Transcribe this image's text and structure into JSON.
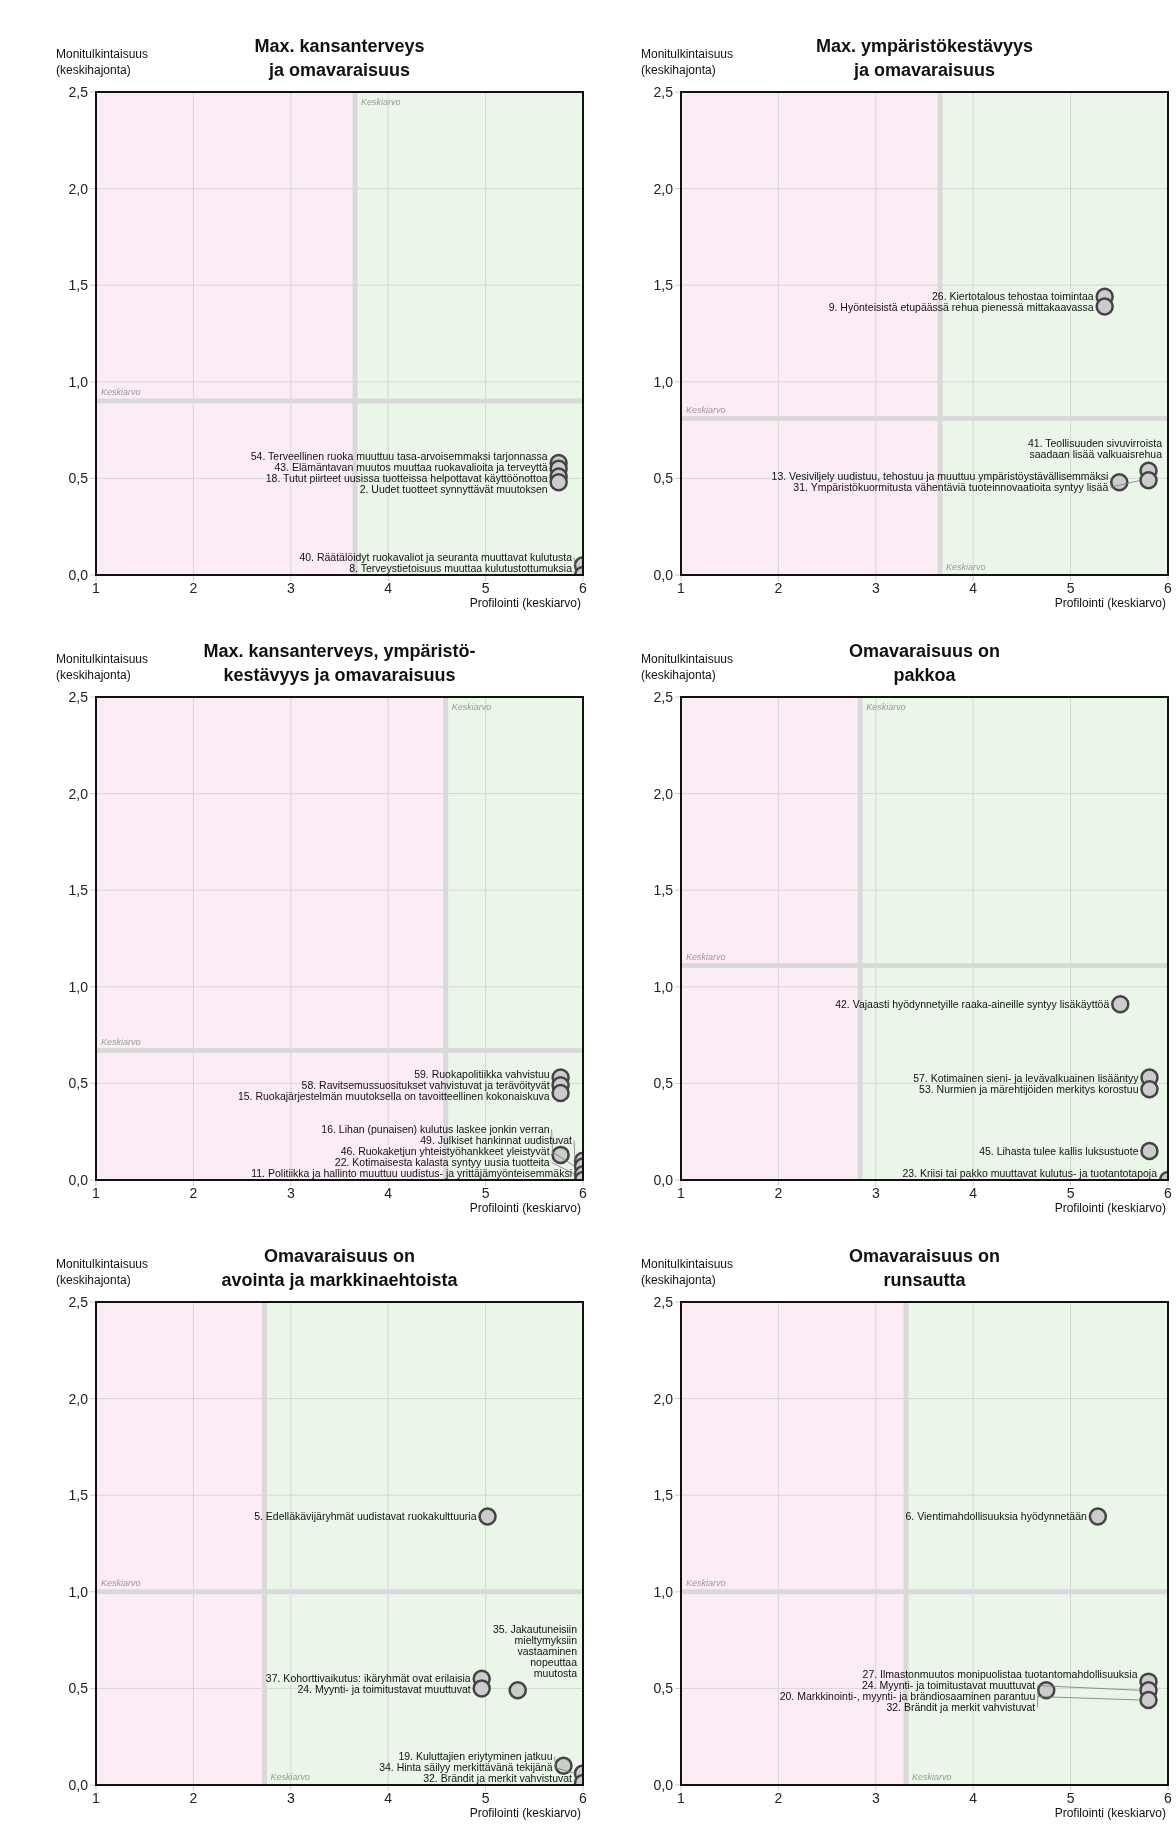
{
  "chart_data": [
    {
      "type": "scatter",
      "title": "Max. kansanterveys\nja omavaraisuus",
      "xlabel": "Profilointi (keskiarvo)",
      "ylabel": "Monitulkintaisuus\n(keskihajonta)",
      "xlim": [
        1,
        6
      ],
      "ylim": [
        0,
        2.5
      ],
      "xticks": [
        1,
        2,
        3,
        4,
        5,
        6
      ],
      "yticks": [
        {
          "value": 0,
          "label": "0,0"
        },
        {
          "value": 0.5,
          "label": "0,5"
        },
        {
          "value": 1,
          "label": "1,0"
        },
        {
          "value": 1.5,
          "label": "1,5"
        },
        {
          "value": 2,
          "label": "2,0"
        },
        {
          "value": 2.5,
          "label": "2,5"
        }
      ],
      "grid": true,
      "marker": "circle",
      "ref_lines": [
        {
          "axis": "x",
          "value": 3.66,
          "label": "Keskiarvo",
          "color": "#d9d9d9"
        },
        {
          "axis": "y",
          "value": 0.9,
          "label": "Keskiarvo",
          "color": "#d9d9d9"
        }
      ],
      "bands": [
        {
          "axis": "x",
          "from": 1,
          "to": 3.66,
          "color": "#fbecf5"
        },
        {
          "axis": "x",
          "from": 3.66,
          "to": 6,
          "color": "#eaf6e8"
        }
      ],
      "series": [
        {
          "color": "#cccccc",
          "x": [
            5.75,
            5.75,
            5.75,
            5.75,
            6,
            6
          ],
          "values": [
            0.58,
            0.55,
            0.51,
            0.48,
            0.05,
            0
          ]
        }
      ],
      "annotations": [
        {
          "text": "54. Terveellinen ruoka muuttuu tasa-arvoisemmaksi tarjonnassa",
          "x": 5.75,
          "y": 0.58
        },
        {
          "text": "43. Elämäntavan muutos muuttaa ruokavalioita ja terveyttä",
          "x": 5.75,
          "y": 0.55
        },
        {
          "text": "18. Tutut piirteet uusissa tuotteissa helpottavat käyttöönottoa",
          "x": 5.75,
          "y": 0.51
        },
        {
          "text": "2. Uudet tuotteet synnyttävät muutoksen",
          "x": 5.75,
          "y": 0.48
        },
        {
          "text": "40. Räätälöidyt ruokavaliot ja seuranta muuttavat kulutusta",
          "x": 6,
          "y": 0.05
        },
        {
          "text": "8. Terveystietoisuus muuttaa kulutustottumuksia",
          "x": 6,
          "y": 0
        }
      ]
    },
    {
      "type": "scatter",
      "title": "Max. ympäristökestävyys\nja omavaraisuus",
      "xlabel": "Profilointi (keskiarvo)",
      "ylabel": "Monitulkintaisuus\n(keskihajonta)",
      "xlim": [
        1,
        6
      ],
      "ylim": [
        0,
        2.5
      ],
      "xticks": [
        1,
        2,
        3,
        4,
        5,
        6
      ],
      "yticks": [
        {
          "value": 0,
          "label": "0,0"
        },
        {
          "value": 0.5,
          "label": "0,5"
        },
        {
          "value": 1,
          "label": "1,0"
        },
        {
          "value": 1.5,
          "label": "1,5"
        },
        {
          "value": 2,
          "label": "2,0"
        },
        {
          "value": 2.5,
          "label": "2,5"
        }
      ],
      "grid": true,
      "marker": "circle",
      "ref_lines": [
        {
          "axis": "x",
          "value": 3.66,
          "label": "Keskiarvo",
          "color": "#d9d9d9"
        },
        {
          "axis": "y",
          "value": 0.81,
          "label": "Keskiarvo",
          "color": "#d9d9d9"
        }
      ],
      "bands": [
        {
          "axis": "x",
          "from": 1,
          "to": 3.66,
          "color": "#fbecf5"
        },
        {
          "axis": "x",
          "from": 3.66,
          "to": 6,
          "color": "#eaf6e8"
        }
      ],
      "series": [
        {
          "color": "#cccccc",
          "x": [
            5.35,
            5.35,
            5.8,
            5.5,
            5.8
          ],
          "values": [
            1.44,
            1.39,
            0.54,
            0.48,
            0.49
          ]
        }
      ],
      "annotations": [
        {
          "text": "26. Kiertotalous tehostaa toimintaa",
          "x": 5.35,
          "y": 1.44
        },
        {
          "text": "9. Hyönteisistä etupäässä rehua pienessä mittakaavassa",
          "x": 5.35,
          "y": 1.39
        },
        {
          "text": "41. Teollisuuden sivuvirroista\nsaadaan lisää valkuaisrehua",
          "x": 5.8,
          "y": 0.54
        },
        {
          "text": "13. Vesiviljely uudistuu, tehostuu ja muuttuu ympäristöystävällisemmäksi",
          "x": 5.5,
          "y": 0.48
        },
        {
          "text": "31. Ympäristökuormitusta vähentäviä tuoteinnovaatioita syntyy lisää",
          "x": 5.8,
          "y": 0.49
        }
      ]
    },
    {
      "type": "scatter",
      "title": "Max. kansanterveys, ympäristö-\nkestävyys ja omavaraisuus",
      "xlabel": "Profilointi (keskiarvo)",
      "ylabel": "Monitulkintaisuus\n(keskihajonta)",
      "xlim": [
        1,
        6
      ],
      "ylim": [
        0,
        2.5
      ],
      "xticks": [
        1,
        2,
        3,
        4,
        5,
        6
      ],
      "yticks": [
        {
          "value": 0,
          "label": "0,0"
        },
        {
          "value": 0.5,
          "label": "0,5"
        },
        {
          "value": 1,
          "label": "1,0"
        },
        {
          "value": 1.5,
          "label": "1,5"
        },
        {
          "value": 2,
          "label": "2,0"
        },
        {
          "value": 2.5,
          "label": "2,5"
        }
      ],
      "grid": true,
      "marker": "circle",
      "ref_lines": [
        {
          "axis": "x",
          "value": 4.59,
          "label": "Keskiarvo",
          "color": "#d9d9d9"
        },
        {
          "axis": "y",
          "value": 0.67,
          "label": "Keskiarvo",
          "color": "#d9d9d9"
        }
      ],
      "bands": [
        {
          "axis": "x",
          "from": 1,
          "to": 4.59,
          "color": "#fbecf5"
        },
        {
          "axis": "x",
          "from": 4.59,
          "to": 6,
          "color": "#eaf6e8"
        }
      ],
      "series": [
        {
          "color": "#cccccc",
          "x": [
            5.77,
            5.77,
            5.77,
            5.77,
            6,
            6,
            6,
            6
          ],
          "values": [
            0.53,
            0.49,
            0.45,
            0.13,
            0.1,
            0.07,
            0.03,
            0
          ]
        }
      ],
      "annotations": [
        {
          "text": "59. Ruokapolitiikka vahvistuu",
          "x": 5.77,
          "y": 0.53
        },
        {
          "text": "58. Ravitsemussuositukset vahvistuvat ja terävöityvät",
          "x": 5.77,
          "y": 0.49
        },
        {
          "text": "15. Ruokajärjestelmän muutoksella on tavoitteellinen kokonaiskuva",
          "x": 5.77,
          "y": 0.45
        },
        {
          "text": "16. Lihan (punaisen) kulutus laskee jonkin verran",
          "x": 5.77,
          "y": 0.13
        },
        {
          "text": "49. Julkiset hankinnat uudistuvat",
          "x": 6,
          "y": 0.1
        },
        {
          "text": "46. Ruokaketjun yhteistyöhankkeet yleistyvät",
          "x": 6,
          "y": 0.07
        },
        {
          "text": "22. Kotimaisesta kalasta syntyy uusia tuotteita",
          "x": 6,
          "y": 0.03
        },
        {
          "text": "11. Politiikka ja hallinto muuttuu uudistus- ja yrittäjämyönteisemmäksi",
          "x": 6,
          "y": 0
        }
      ]
    },
    {
      "type": "scatter",
      "title": "Omavaraisuus on\npakkoa",
      "xlabel": "Profilointi (keskiarvo)",
      "ylabel": "Monitulkintaisuus\n(keskihajonta)",
      "xlim": [
        1,
        6
      ],
      "ylim": [
        0,
        2.5
      ],
      "xticks": [
        1,
        2,
        3,
        4,
        5,
        6
      ],
      "yticks": [
        {
          "value": 0,
          "label": "0,0"
        },
        {
          "value": 0.5,
          "label": "0,5"
        },
        {
          "value": 1,
          "label": "1,0"
        },
        {
          "value": 1.5,
          "label": "1,5"
        },
        {
          "value": 2,
          "label": "2,0"
        },
        {
          "value": 2.5,
          "label": "2,5"
        }
      ],
      "grid": true,
      "marker": "circle",
      "ref_lines": [
        {
          "axis": "x",
          "value": 2.84,
          "label": "Keskiarvo",
          "color": "#d9d9d9"
        },
        {
          "axis": "y",
          "value": 1.11,
          "label": "Keskiarvo",
          "color": "#d9d9d9"
        }
      ],
      "bands": [
        {
          "axis": "x",
          "from": 1,
          "to": 2.84,
          "color": "#fbecf5"
        },
        {
          "axis": "x",
          "from": 2.84,
          "to": 6,
          "color": "#eaf6e8"
        }
      ],
      "series": [
        {
          "color": "#cccccc",
          "x": [
            5.51,
            5.81,
            5.81,
            5.81,
            6
          ],
          "values": [
            0.91,
            0.53,
            0.47,
            0.15,
            0
          ]
        }
      ],
      "annotations": [
        {
          "text": "42. Vajaasti hyödynnetyille raaka-aineille syntyy lisäkäyttöä",
          "x": 5.51,
          "y": 0.91
        },
        {
          "text": "57. Kotimainen sieni- ja levävalkuainen lisääntyy",
          "x": 5.81,
          "y": 0.53
        },
        {
          "text": "53. Nurmien ja märehtijöiden merkitys korostuu",
          "x": 5.81,
          "y": 0.47
        },
        {
          "text": "45. Lihasta tulee kallis luksustuote",
          "x": 5.81,
          "y": 0.15
        },
        {
          "text": "23. Kriisi tai pakko muuttavat kulutus- ja tuotantotapoja",
          "x": 6,
          "y": 0
        }
      ]
    },
    {
      "type": "scatter",
      "title": "Omavaraisuus on\navointa ja markkinaehtoista",
      "xlabel": "Profilointi (keskiarvo)",
      "ylabel": "Monitulkintaisuus\n(keskihajonta)",
      "xlim": [
        1,
        6
      ],
      "ylim": [
        0,
        2.5
      ],
      "xticks": [
        1,
        2,
        3,
        4,
        5,
        6
      ],
      "yticks": [
        {
          "value": 0,
          "label": "0,0"
        },
        {
          "value": 0.5,
          "label": "0,5"
        },
        {
          "value": 1,
          "label": "1,0"
        },
        {
          "value": 1.5,
          "label": "1,5"
        },
        {
          "value": 2,
          "label": "2,0"
        },
        {
          "value": 2.5,
          "label": "2,5"
        }
      ],
      "grid": true,
      "marker": "circle",
      "ref_lines": [
        {
          "axis": "x",
          "value": 2.73,
          "label": "Keskiarvo",
          "color": "#d9d9d9"
        },
        {
          "axis": "y",
          "value": 1,
          "label": "Keskiarvo",
          "color": "#d9d9d9"
        }
      ],
      "bands": [
        {
          "axis": "x",
          "from": 1,
          "to": 2.73,
          "color": "#fbecf5"
        },
        {
          "axis": "x",
          "from": 2.73,
          "to": 6,
          "color": "#eaf6e8"
        }
      ],
      "series": [
        {
          "color": "#cccccc",
          "x": [
            5.02,
            5.33,
            4.96,
            4.96,
            5.8,
            6,
            6
          ],
          "values": [
            1.39,
            0.49,
            0.55,
            0.5,
            0.1,
            0.06,
            0.01
          ]
        }
      ],
      "annotations": [
        {
          "text": "5. Edelläkävijäryhmät uudistavat ruokakulttuuria",
          "x": 5.02,
          "y": 1.39
        },
        {
          "text": "35. Jakautuneisiin\nmieltymyksiin\nvastaaminen\nnopeuttaa\nmuutosta",
          "x": 5.33,
          "y": 0.49
        },
        {
          "text": "37. Kohorttivaikutus: ikäryhmät ovat erilaisia",
          "x": 4.96,
          "y": 0.55
        },
        {
          "text": "24. Myynti- ja toimitustavat muuttuvat",
          "x": 4.96,
          "y": 0.5
        },
        {
          "text": "19. Kuluttajien eriytyminen jatkuu",
          "x": 5.8,
          "y": 0.1
        },
        {
          "text": "34. Hinta säilyy merkittävänä tekijänä",
          "x": 6,
          "y": 0.06
        },
        {
          "text": "32. Brändit ja merkit vahvistuvat",
          "x": 6,
          "y": 0.01
        }
      ]
    },
    {
      "type": "scatter",
      "title": "Omavaraisuus on\nrunsautta",
      "xlabel": "Profilointi (keskiarvo)",
      "ylabel": "Monitulkintaisuus\n(keskihajonta)",
      "xlim": [
        1,
        6
      ],
      "ylim": [
        0,
        2.5
      ],
      "xticks": [
        1,
        2,
        3,
        4,
        5,
        6
      ],
      "yticks": [
        {
          "value": 0,
          "label": "0,0"
        },
        {
          "value": 0.5,
          "label": "0,5"
        },
        {
          "value": 1,
          "label": "1,0"
        },
        {
          "value": 1.5,
          "label": "1,5"
        },
        {
          "value": 2,
          "label": "2,0"
        },
        {
          "value": 2.5,
          "label": "2,5"
        }
      ],
      "grid": true,
      "marker": "circle",
      "ref_lines": [
        {
          "axis": "x",
          "value": 3.31,
          "label": "Keskiarvo",
          "color": "#d9d9d9"
        },
        {
          "axis": "y",
          "value": 1,
          "label": "Keskiarvo",
          "color": "#d9d9d9"
        }
      ],
      "bands": [
        {
          "axis": "x",
          "from": 1,
          "to": 3.31,
          "color": "#fbecf5"
        },
        {
          "axis": "x",
          "from": 3.31,
          "to": 6,
          "color": "#eaf6e8"
        }
      ],
      "series": [
        {
          "color": "#cccccc",
          "x": [
            5.28,
            5.8,
            5.8,
            5.8,
            4.75
          ],
          "values": [
            1.39,
            0.535,
            0.49,
            0.44,
            0.49
          ]
        }
      ],
      "annotations": [
        {
          "text": "6. Vientimahdollisuuksia hyödynnetään",
          "x": 5.28,
          "y": 1.39
        },
        {
          "text": "27. Ilmastonmuutos monipuolistaa tuotantomahdollisuuksia",
          "x": 5.8,
          "y": 0.535
        },
        {
          "text": "24. Myynti- ja toimitustavat muuttuvat",
          "x": 5.8,
          "y": 0.49
        },
        {
          "text": "20. Markkinointi-, myynti- ja brändiosaaminen parantuu",
          "x": 5.8,
          "y": 0.44
        },
        {
          "text": "32. Brändit ja merkit vahvistuvat",
          "x": 4.75,
          "y": 0.49
        }
      ]
    }
  ]
}
